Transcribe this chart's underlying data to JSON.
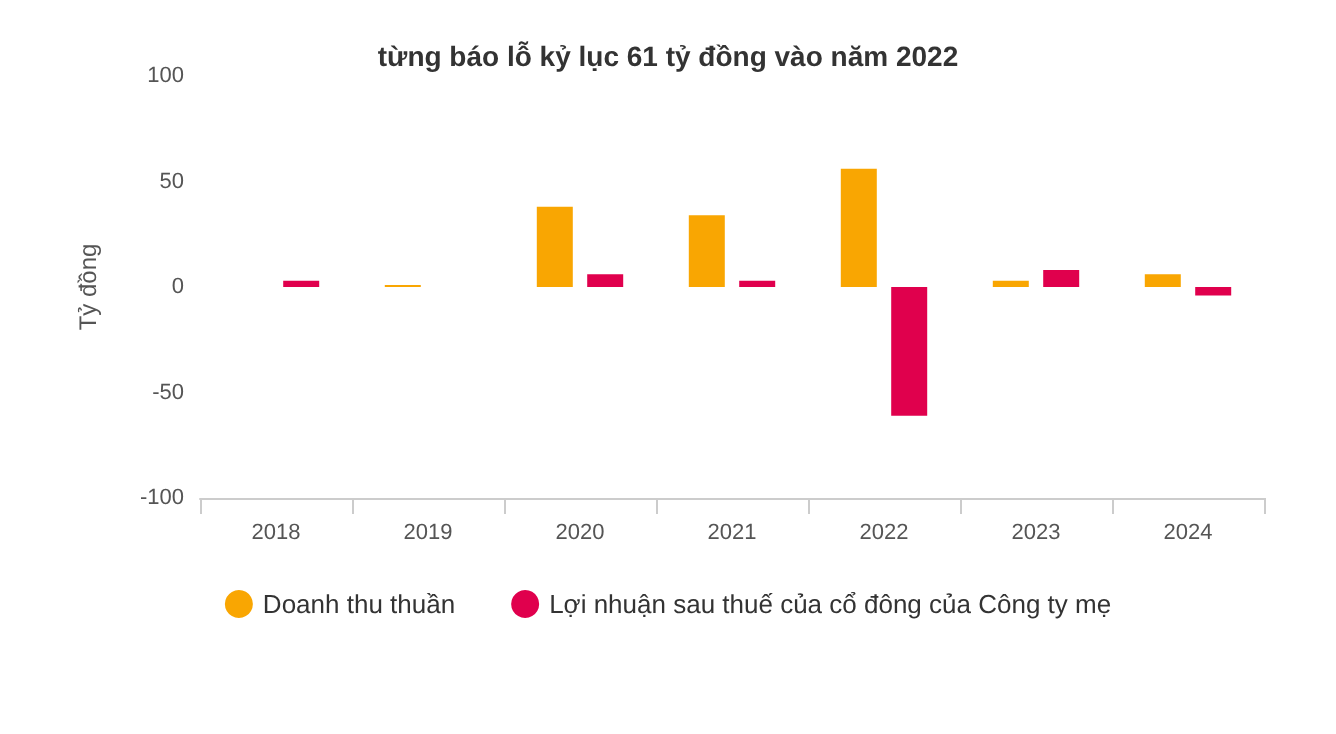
{
  "chart_data": {
    "type": "bar",
    "title": "từng báo lỗ kỷ lục 61 tỷ đồng vào năm 2022",
    "ylabel": "Tỷ đồng",
    "categories": [
      "2018",
      "2019",
      "2020",
      "2021",
      "2022",
      "2023",
      "2024"
    ],
    "series": [
      {
        "name": "Doanh thu thuần",
        "color": "#f9a602",
        "values": [
          null,
          1,
          38,
          34,
          56,
          3,
          6
        ]
      },
      {
        "name": "Lợi nhuận sau thuế của cổ đông của Công ty mẹ",
        "color": "#e0004d",
        "values": [
          3,
          null,
          6,
          3,
          -61,
          8,
          -4
        ]
      }
    ],
    "ylim": [
      -100,
      100
    ],
    "yticks": [
      -100,
      -50,
      0,
      50,
      100
    ],
    "grid": false,
    "legend": "bottom"
  }
}
